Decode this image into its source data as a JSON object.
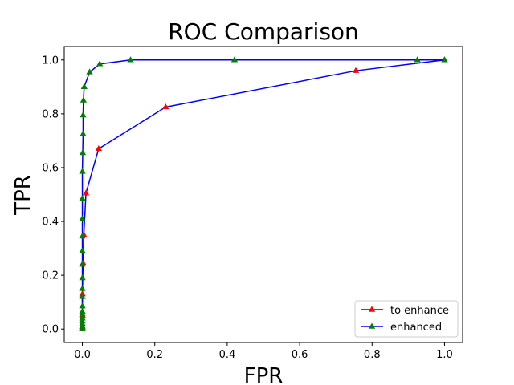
{
  "chart_data": {
    "type": "line",
    "title": "ROC Comparison",
    "xlabel": "FPR",
    "ylabel": "TPR",
    "xlim": [
      -0.05,
      1.05
    ],
    "ylim": [
      -0.05,
      1.05
    ],
    "xticks": [
      "0.0",
      "0.2",
      "0.4",
      "0.6",
      "0.8",
      "1.0"
    ],
    "yticks": [
      "0.0",
      "0.2",
      "0.4",
      "0.6",
      "0.8",
      "1.0"
    ],
    "grid": false,
    "legend_position": "lower-right",
    "line_color": "#0000ff",
    "series": [
      {
        "name": "to enhance",
        "marker_color": "#ff0000",
        "x": [
          0.0,
          0.0,
          0.0,
          0.0,
          0.002,
          0.004,
          0.01,
          0.045,
          0.23,
          0.755,
          1.0
        ],
        "y": [
          0.0,
          0.01,
          0.05,
          0.13,
          0.245,
          0.35,
          0.505,
          0.67,
          0.825,
          0.96,
          1.0
        ]
      },
      {
        "name": "enhanced",
        "marker_color": "#008000",
        "x": [
          0.0,
          0.0,
          0.0,
          0.0,
          0.0,
          0.0,
          0.0,
          0.0,
          0.0,
          0.0,
          0.0,
          0.0,
          0.0,
          0.0,
          0.0,
          0.0,
          0.0,
          0.0,
          0.001,
          0.002,
          0.002,
          0.003,
          0.005,
          0.02,
          0.048,
          0.133,
          0.42,
          0.925,
          1.0
        ],
        "y": [
          0.0,
          0.005,
          0.01,
          0.02,
          0.03,
          0.04,
          0.055,
          0.065,
          0.085,
          0.12,
          0.15,
          0.19,
          0.24,
          0.29,
          0.345,
          0.41,
          0.485,
          0.585,
          0.655,
          0.725,
          0.795,
          0.85,
          0.9,
          0.955,
          0.985,
          1.0,
          1.0,
          1.0,
          1.0
        ]
      }
    ]
  }
}
